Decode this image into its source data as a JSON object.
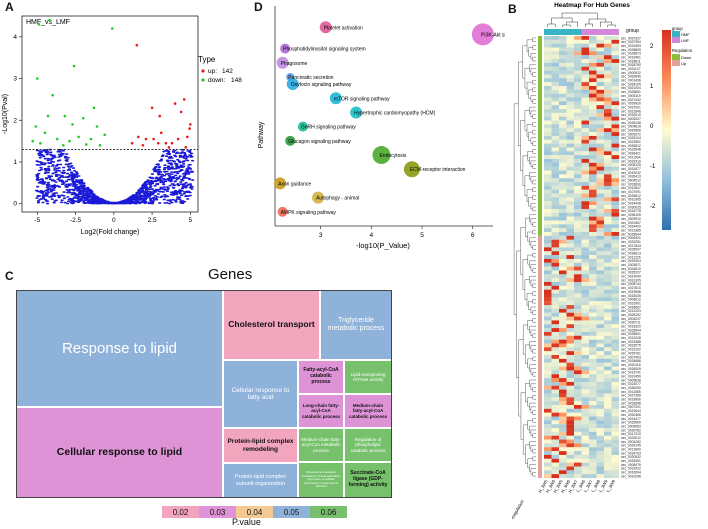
{
  "panels": {
    "a": "A",
    "b": "B",
    "c": "C",
    "d": "D"
  },
  "colors": {
    "up": "#e51b1b",
    "down": "#22cc22",
    "ns": "#1a1ad6",
    "heat_high": "#d7301f",
    "heat_mid": "#fffbd0",
    "heat_low": "#2d6fb0",
    "hmf": "#3ab4c4",
    "lmf": "#d387d9",
    "reg_down": "#8bbf3a",
    "reg_up": "#e5a09a"
  },
  "chart_data": [
    {
      "id": "volcano",
      "type": "scatter",
      "title": "HMF_vs_LMF",
      "xlabel": "Log2(Fold change)",
      "ylabel": "-Log10(Pval)",
      "xlim": [
        -6,
        5.5
      ],
      "ylim": [
        -0.2,
        4.5
      ],
      "x_ticks": [
        "-5",
        "-2.5",
        "0",
        "2.5",
        "5"
      ],
      "y_ticks": [
        "0",
        "1",
        "2",
        "3",
        "4"
      ],
      "threshold_y": 1.3,
      "legend": {
        "title": "Type",
        "items": [
          {
            "label": "up:",
            "count": "142"
          },
          {
            "label": "down:",
            "count": "148"
          }
        ],
        "position": "right"
      },
      "series": [
        {
          "name": "up",
          "points": [
            [
              1.5,
              3.8
            ],
            [
              2.5,
              2.3
            ],
            [
              3,
              2.1
            ],
            [
              4,
              2.4
            ],
            [
              4.4,
              2.2
            ],
            [
              4.6,
              2.5
            ],
            [
              2.1,
              1.55
            ],
            [
              2.6,
              1.55
            ],
            [
              3.4,
              1.45
            ],
            [
              3.8,
              1.45
            ],
            [
              4.8,
              1.6
            ],
            [
              4.95,
              1.8
            ],
            [
              1.2,
              1.45
            ],
            [
              1.6,
              1.6
            ],
            [
              3.1,
              1.7
            ],
            [
              2.9,
              1.45
            ],
            [
              4.2,
              1.55
            ],
            [
              5,
              1.9
            ],
            [
              1.9,
              1.4
            ],
            [
              3.6,
              1.35
            ],
            [
              4.7,
              1.35
            ]
          ]
        },
        {
          "name": "down",
          "points": [
            [
              -4.2,
              4.4
            ],
            [
              -4.9,
              4.3
            ],
            [
              -0.1,
              4.2
            ],
            [
              -2.6,
              3.3
            ],
            [
              -5,
              3.0
            ],
            [
              -4,
              2.6
            ],
            [
              -3.2,
              2.1
            ],
            [
              -2,
              2.05
            ],
            [
              -1.1,
              1.85
            ],
            [
              -0.6,
              1.65
            ],
            [
              -5.1,
              1.85
            ],
            [
              -4.5,
              1.7
            ],
            [
              -3.7,
              1.55
            ],
            [
              -2.9,
              1.5
            ],
            [
              -2.3,
              1.6
            ],
            [
              -1.5,
              1.55
            ],
            [
              -5.3,
              1.5
            ],
            [
              -4.8,
              1.45
            ],
            [
              -3.3,
              1.4
            ],
            [
              -1.8,
              1.42
            ],
            [
              -0.9,
              1.4
            ],
            [
              -4.3,
              2.1
            ],
            [
              -1.3,
              2.3
            ],
            [
              -2.7,
              1.9
            ]
          ]
        }
      ]
    },
    {
      "id": "bubble",
      "type": "scatter",
      "xlabel": "-log10(P_Value)",
      "ylabel": "Pathway",
      "xlim": [
        2.1,
        6.4
      ],
      "x_ticks": [
        "3",
        "4",
        "5",
        "6"
      ],
      "points": [
        {
          "label": "Platelet activation",
          "x": 3.1,
          "y": 15,
          "size": 6,
          "color": "#e25a9a"
        },
        {
          "label": "PI3K-Akt signaling pathway",
          "x": 6.2,
          "y": 14.5,
          "size": 11,
          "color": "#e070d4"
        },
        {
          "label": "Phosphatidylinositol signaling system",
          "x": 2.3,
          "y": 13.5,
          "size": 5,
          "color": "#b06ad4"
        },
        {
          "label": "Phagosome",
          "x": 2.25,
          "y": 12.5,
          "size": 6,
          "color": "#c08ae0"
        },
        {
          "label": "Pancreatic secretion",
          "x": 2.4,
          "y": 11.5,
          "size": 4,
          "color": "#5c96e6"
        },
        {
          "label": "Oxytocin signaling pathway",
          "x": 2.45,
          "y": 11,
          "size": 6,
          "color": "#2aa8e0"
        },
        {
          "label": "mTOR signaling pathway",
          "x": 3.3,
          "y": 10,
          "size": 6,
          "color": "#1ab6d6"
        },
        {
          "label": "Hypertrophic cardiomyopathy (HCM)",
          "x": 3.7,
          "y": 9,
          "size": 6,
          "color": "#1abfc6"
        },
        {
          "label": "GnRH signaling pathway",
          "x": 2.65,
          "y": 8,
          "size": 5,
          "color": "#1db895"
        },
        {
          "label": "Glucagon signaling pathway",
          "x": 2.4,
          "y": 7,
          "size": 5,
          "color": "#2a9a3a"
        },
        {
          "label": "Endocytosis",
          "x": 4.2,
          "y": 6,
          "size": 9,
          "color": "#4aaa2a"
        },
        {
          "label": "ECM-receptor interaction",
          "x": 4.8,
          "y": 5,
          "size": 8,
          "color": "#8a9a10"
        },
        {
          "label": "Axon guidance",
          "x": 2.2,
          "y": 4,
          "size": 6,
          "color": "#c89a1a"
        },
        {
          "label": "Autophagy - animal",
          "x": 2.95,
          "y": 3,
          "size": 6,
          "color": "#d0b040"
        },
        {
          "label": "AMPK signaling pathway",
          "x": 2.25,
          "y": 2,
          "size": 5,
          "color": "#ef6a5a"
        }
      ]
    },
    {
      "id": "heatmap",
      "type": "heatmap",
      "title": "Heatmap For Hub Genes",
      "columns": [
        "H_3W5",
        "H_3W6",
        "H_3W5",
        "H_3W6",
        "H_3W7",
        "L_3W6",
        "L_3W7",
        "L_3W8",
        "L_3W9",
        "L_3W9"
      ],
      "column_groups": [
        "HMF",
        "HMF",
        "HMF",
        "HMF",
        "HMF",
        "LMF",
        "LMF",
        "LMF",
        "LMF",
        "LMF"
      ],
      "row_annotation_label": "Regulation",
      "legend_group": {
        "title": "group",
        "items": [
          "HMF",
          "LMF"
        ]
      },
      "legend_regulation": {
        "title": "Regulation",
        "items": [
          "Down",
          "Up"
        ]
      },
      "colorbar_ticks": [
        "2",
        "1",
        "0",
        "-1",
        "-2"
      ],
      "row_count": 115,
      "up_rows": 52,
      "row_labels": [
        "circ_0037327",
        "circ_0037394",
        "circ_0019453",
        "circ_0028805",
        "circ_0028873",
        "circ_0019461",
        "circ_0028811",
        "circ_0028790",
        "circ_0031127",
        "circ_0000932",
        "circ_0032846",
        "circ_0001436",
        "circ_0034105",
        "circ_0021004",
        "circ_0026651",
        "circ_0005119",
        "circ_0027432",
        "circ_0029920",
        "circ_0037001",
        "circ_0021846",
        "circ_0032010",
        "circ_0005327",
        "circ_0035148",
        "circ_0004819",
        "circ_0025566",
        "circ_0009372",
        "circ_0033104",
        "circ_0023951",
        "circ_0030812",
        "circ_0015548",
        "circ_0036421",
        "circ_0011904",
        "circ_0022310",
        "circ_0008125",
        "circ_0031877",
        "circ_0019032",
        "circ_0026413",
        "circ_0004512",
        "circ_0033690",
        "circ_0012847",
        "circ_0027091",
        "circ_0035812",
        "circ_0010395",
        "circ_0024408",
        "circ_0030025",
        "circ_0016778",
        "circ_0036105",
        "circ_0009910",
        "circ_0021567",
        "circ_0034420",
        "circ_0013385",
        "circ_0028544",
        "circ_0006301",
        "circ_0032291",
        "circ_0017843",
        "circ_0025007",
        "circ_0036813",
        "circ_0011226",
        "circ_0029304",
        "circ_0003871",
        "circ_0024610",
        "circ_0035227",
        "circ_0014099",
        "circ_0031305",
        "circ_0008744",
        "circ_0027810",
        "circ_0019558",
        "circ_0033035",
        "circ_0006612",
        "circ_0022901",
        "circ_0036667",
        "circ_0012203",
        "circ_0028192",
        "circ_0004037",
        "circ_0030711",
        "circ_0018320",
        "circ_0025944",
        "circ_0035501",
        "circ_0010028",
        "circ_0023388",
        "circ_0032575",
        "circ_0015102",
        "circ_0029761",
        "circ_0007453",
        "circ_0034866",
        "circ_0020115",
        "circ_0026009",
        "circ_0013741",
        "circ_0031450",
        "circ_0005838",
        "circ_0024077",
        "circ_0036290",
        "circ_0011585",
        "circ_0027356",
        "circ_0018906",
        "circ_0033548",
        "circ_0007201",
        "circ_0022644",
        "circ_0030368",
        "circ_0014477",
        "circ_0035960",
        "circ_0009083",
        "circ_0026782",
        "circ_0017219",
        "circ_0032012",
        "circ_0004250",
        "circ_0029145",
        "circ_0012660",
        "circ_0034703",
        "circ_0020532",
        "circ_0025391",
        "circ_0008476",
        "circ_0031922",
        "circ_0016094",
        "circ_0010296"
      ]
    },
    {
      "id": "treemap",
      "type": "treemap",
      "title": "Genes",
      "legend_title": "P.value",
      "legend_values": [
        "0.02",
        "0.03",
        "0.04",
        "0.05",
        "0.06"
      ],
      "legend_colors": [
        "#f2a6be",
        "#de93d6",
        "#f3ca93",
        "#8fb2db",
        "#77c16d"
      ],
      "tiles": [
        {
          "label": "Response to lipid",
          "p": 0.05,
          "bold": false
        },
        {
          "label": "Cellular response to lipid",
          "p": 0.03,
          "bold": true
        },
        {
          "label": "Cholesterol transport",
          "p": 0.02,
          "bold": true
        },
        {
          "label": "Triglyceride metabolic process",
          "p": 0.05,
          "bold": false
        },
        {
          "label": "Cellular response to fatty acid",
          "p": 0.05,
          "bold": false
        },
        {
          "label": "Fatty-acyl-CoA catabolic process",
          "p": 0.03,
          "bold": true
        },
        {
          "label": "Lipid-transporting ATPase activity",
          "p": 0.06,
          "bold": false
        },
        {
          "label": "Long-chain fatty-acyl-CoA catabolic process",
          "p": 0.03,
          "bold": true
        },
        {
          "label": "Medium-chain fatty-acyl-CoA catabolic process",
          "p": 0.03,
          "bold": true
        },
        {
          "label": "Protein-lipid complex remodeling",
          "p": 0.02,
          "bold": true
        },
        {
          "label": "Medium-chain fatty-acyl-CoA metabolic process",
          "p": 0.06,
          "bold": false
        },
        {
          "label": "Regulation of phospholipid catabolic process",
          "p": 0.06,
          "bold": false
        },
        {
          "label": "Protein-lipid complex subunit organization",
          "p": 0.05,
          "bold": false
        },
        {
          "label": "Peroxisome-mediated modulation of desensitization (dynamics of cellular processes) in response to stimulus",
          "p": 0.06,
          "bold": false
        },
        {
          "label": "Succinate-CoA ligase (GDP-forming) activity",
          "p": 0.06,
          "bold": true
        }
      ]
    }
  ]
}
